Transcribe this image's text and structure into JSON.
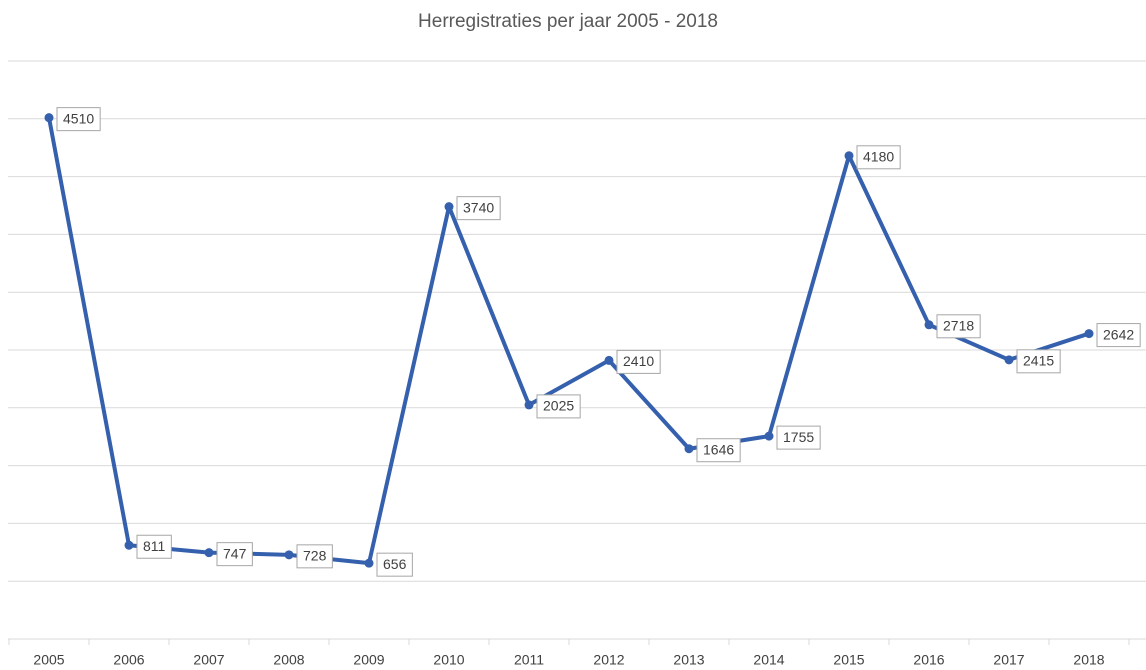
{
  "chart_data": {
    "type": "line",
    "title": "Herregistraties per jaar 2005 - 2018",
    "categories": [
      "2005",
      "2006",
      "2007",
      "2008",
      "2009",
      "2010",
      "2011",
      "2012",
      "2013",
      "2014",
      "2015",
      "2016",
      "2017",
      "2018"
    ],
    "series": [
      {
        "name": "Herregistraties",
        "color": "#3560ad",
        "values": [
          4510,
          811,
          747,
          728,
          656,
          3740,
          2025,
          2410,
          1646,
          1755,
          4180,
          2718,
          2415,
          2642
        ]
      }
    ],
    "ylim": [
      0,
      5000
    ],
    "yticks": [
      0,
      500,
      1000,
      1500,
      2000,
      2500,
      3000,
      3500,
      4000,
      4500,
      5000
    ],
    "grid": true,
    "data_labels": true
  }
}
